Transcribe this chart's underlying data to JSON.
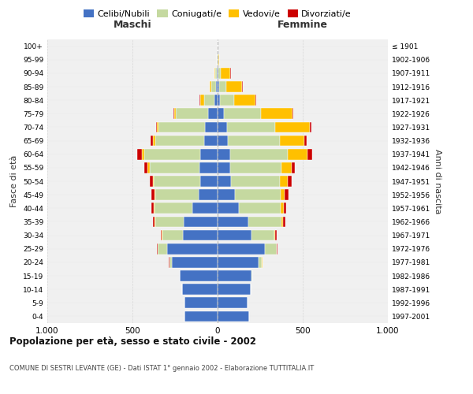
{
  "age_groups_bottom_to_top": [
    "0-4",
    "5-9",
    "10-14",
    "15-19",
    "20-24",
    "25-29",
    "30-34",
    "35-39",
    "40-44",
    "45-49",
    "50-54",
    "55-59",
    "60-64",
    "65-69",
    "70-74",
    "75-79",
    "80-84",
    "85-89",
    "90-94",
    "95-99",
    "100+"
  ],
  "birth_years_bottom_to_top": [
    "1997-2001",
    "1992-1996",
    "1987-1991",
    "1982-1986",
    "1977-1981",
    "1972-1976",
    "1967-1971",
    "1962-1966",
    "1957-1961",
    "1952-1956",
    "1947-1951",
    "1942-1946",
    "1937-1941",
    "1932-1936",
    "1927-1931",
    "1922-1926",
    "1917-1921",
    "1912-1916",
    "1907-1911",
    "1902-1906",
    "≤ 1901"
  ],
  "maschi": {
    "celibi": [
      195,
      195,
      210,
      220,
      270,
      295,
      205,
      200,
      150,
      110,
      100,
      105,
      100,
      80,
      75,
      55,
      20,
      10,
      5,
      2,
      0
    ],
    "coniugati": [
      0,
      0,
      0,
      2,
      12,
      55,
      120,
      165,
      220,
      255,
      275,
      295,
      330,
      285,
      270,
      190,
      60,
      25,
      8,
      2,
      0
    ],
    "vedovi": [
      0,
      0,
      0,
      0,
      2,
      2,
      2,
      5,
      5,
      5,
      5,
      10,
      15,
      15,
      10,
      10,
      20,
      10,
      5,
      0,
      0
    ],
    "divorziati": [
      0,
      0,
      0,
      0,
      2,
      5,
      5,
      10,
      15,
      20,
      20,
      20,
      25,
      15,
      8,
      5,
      5,
      2,
      0,
      0,
      0
    ]
  },
  "femmine": {
    "nubili": [
      185,
      175,
      195,
      200,
      240,
      280,
      200,
      180,
      125,
      100,
      80,
      75,
      75,
      60,
      55,
      35,
      15,
      10,
      5,
      2,
      0
    ],
    "coniugate": [
      0,
      0,
      0,
      5,
      20,
      65,
      135,
      195,
      245,
      270,
      285,
      300,
      335,
      305,
      285,
      220,
      80,
      40,
      15,
      2,
      0
    ],
    "vedove": [
      0,
      0,
      0,
      0,
      2,
      2,
      5,
      10,
      20,
      25,
      45,
      60,
      120,
      145,
      200,
      185,
      125,
      95,
      55,
      5,
      0
    ],
    "divorziate": [
      0,
      0,
      0,
      0,
      2,
      5,
      8,
      15,
      15,
      20,
      25,
      20,
      25,
      15,
      10,
      5,
      5,
      2,
      2,
      0,
      0
    ]
  },
  "colors": {
    "celibi": "#4472c4",
    "coniugati": "#c5d9a0",
    "vedovi": "#ffc000",
    "divorziati": "#cc0000"
  },
  "title": "Popolazione per età, sesso e stato civile - 2002",
  "subtitle": "COMUNE DI SESTRI LEVANTE (GE) - Dati ISTAT 1° gennaio 2002 - Elaborazione TUTTITALIA.IT",
  "xlabel_maschi": "Maschi",
  "xlabel_femmine": "Femmine",
  "ylabel_left": "Fasce di età",
  "ylabel_right": "Anni di nascita",
  "xlim": 1000,
  "bg_color": "#ffffff",
  "plot_bg_color": "#f0f0f0",
  "grid_color": "#cccccc"
}
